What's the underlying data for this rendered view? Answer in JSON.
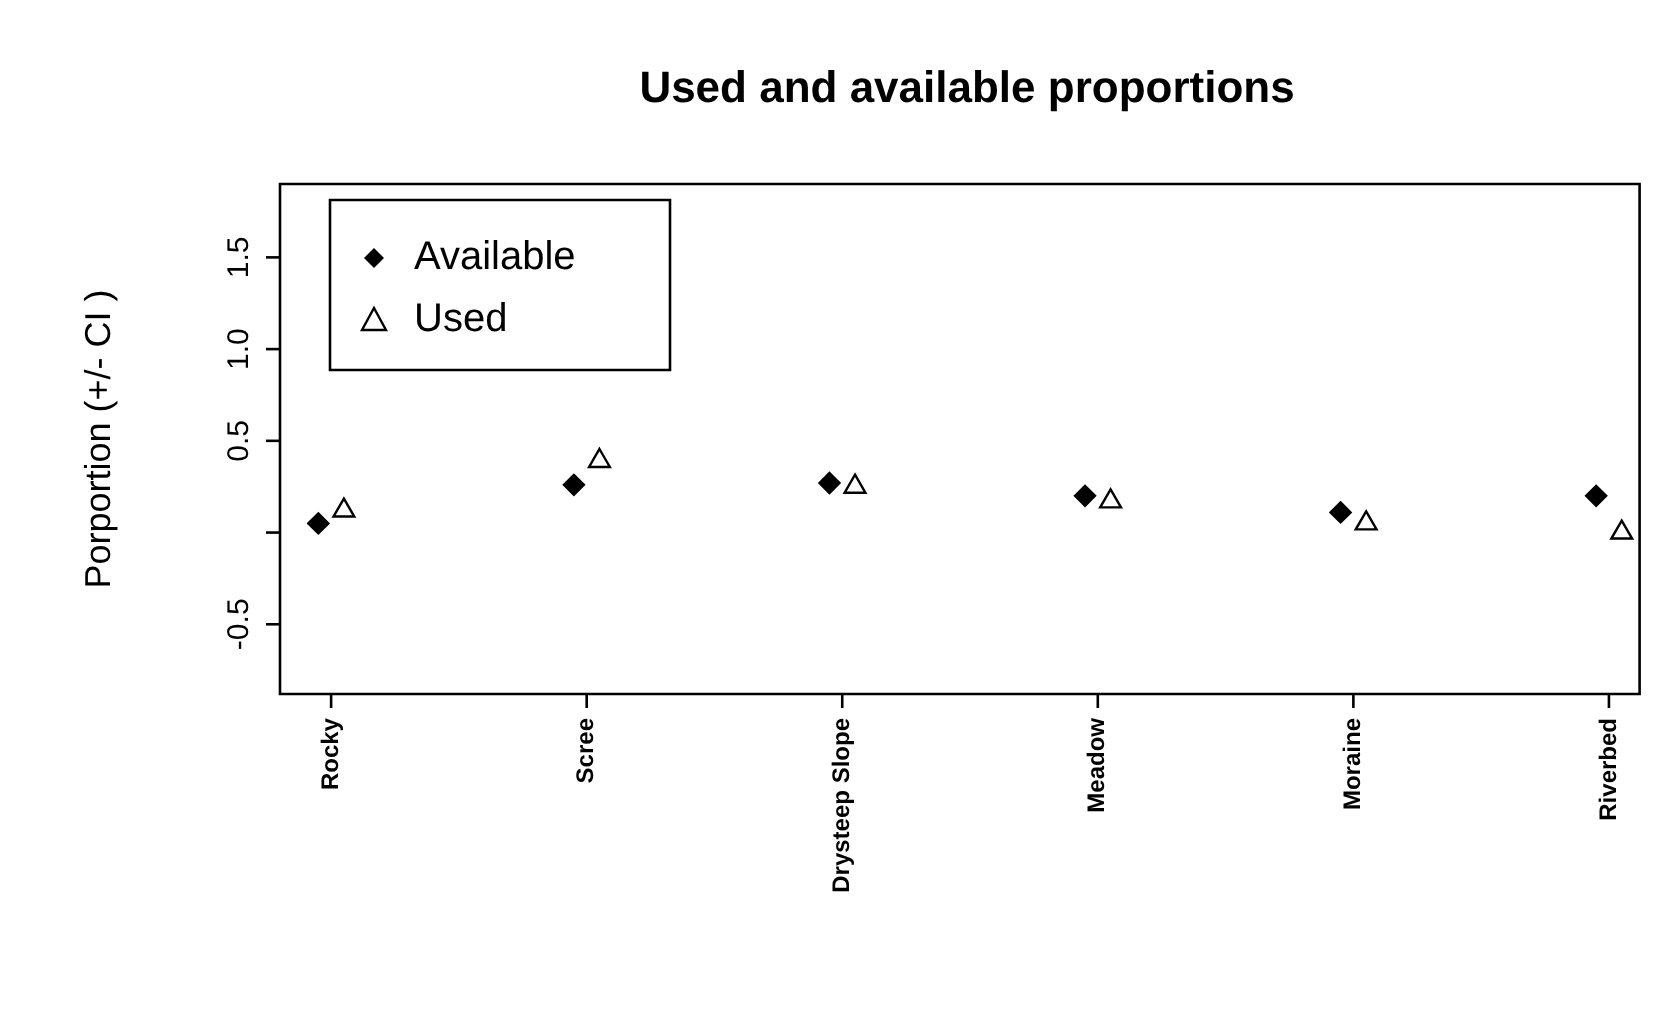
{
  "chart_data": {
    "type": "scatter",
    "title": "Used and available proportions",
    "ylabel": "Porportion (+/- CI )",
    "categories": [
      "Rocky",
      "Scree",
      "Drysteep Slope",
      "Meadow",
      "Moraine",
      "Riverbed"
    ],
    "series": [
      {
        "name": "Available",
        "color": "#000000",
        "marker": "diamond",
        "values": [
          0.05,
          0.26,
          0.27,
          0.2,
          0.11,
          0.2
        ]
      },
      {
        "name": "Used",
        "color": "#000000",
        "marker": "triangle",
        "values": [
          0.12,
          0.39,
          0.25,
          0.17,
          0.05,
          0.0
        ]
      }
    ],
    "ylim": [
      -0.88,
      1.9
    ],
    "yticks": [
      -0.5,
      {
        "value": 0,
        "label": null
      },
      0.5,
      {
        "value": 1,
        "label": "1.0"
      },
      1.5
    ],
    "legend": "top left"
  }
}
